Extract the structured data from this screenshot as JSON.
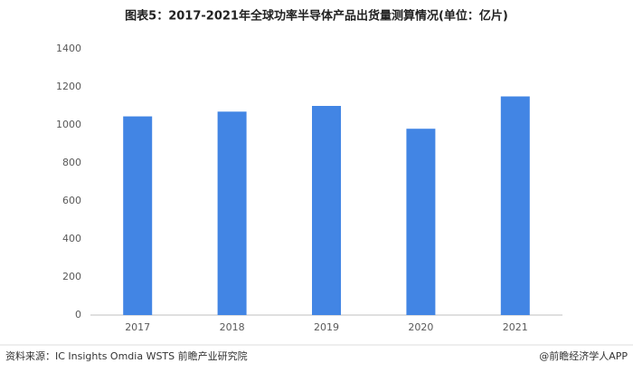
{
  "chart_data": {
    "type": "bar",
    "title": "图表5：2017-2021年全球功率半导体产品出货量测算情况(单位：亿片)",
    "categories": [
      "2017",
      "2018",
      "2019",
      "2020",
      "2021"
    ],
    "values": [
      1045,
      1070,
      1100,
      980,
      1150
    ],
    "color": "#4285e4",
    "ylim": [
      0,
      1400
    ],
    "yticks": [
      0,
      200,
      400,
      600,
      800,
      1000,
      1200,
      1400
    ],
    "grid": false
  },
  "footer": {
    "source": "资料来源：IC Insights Omdia WSTS 前瞻产业研究院",
    "brand": "@前瞻经济学人APP"
  }
}
